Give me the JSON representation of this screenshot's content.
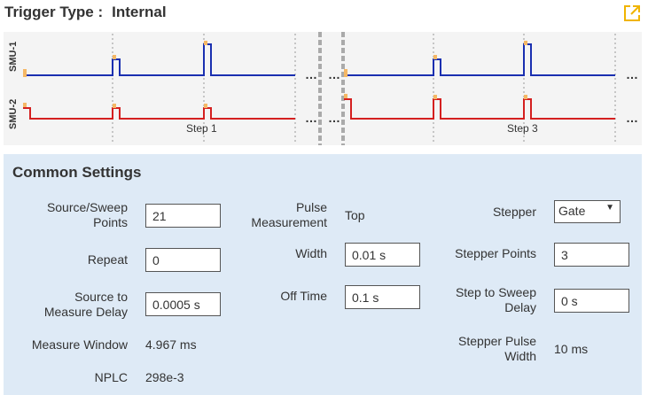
{
  "header": {
    "trigger_label": "Trigger Type :",
    "trigger_value": "Internal"
  },
  "diagram": {
    "channels": [
      "SMU-1",
      "SMU-2"
    ],
    "step_labels": [
      "Step 1",
      "Step 3"
    ],
    "ellipsis": "…",
    "colors": {
      "smu1": "#1a2fb0",
      "smu2": "#d42020",
      "marker": "#f5b765",
      "dashed": "#999999"
    }
  },
  "settings": {
    "title": "Common Settings",
    "source_sweep_points": {
      "label_line1": "Source/Sweep",
      "label_line2": "Points",
      "value": "21"
    },
    "repeat": {
      "label": "Repeat",
      "value": "0"
    },
    "source_measure_delay": {
      "label_line1": "Source to",
      "label_line2": "Measure Delay",
      "value": "0.0005 s"
    },
    "measure_window": {
      "label": "Measure Window",
      "value": "4.967 ms"
    },
    "nplc": {
      "label": "NPLC",
      "value": "298e-3"
    },
    "pulse_measurement": {
      "label_line1": "Pulse",
      "label_line2": "Measurement",
      "value": "Top"
    },
    "width": {
      "label": "Width",
      "value": "0.01 s"
    },
    "off_time": {
      "label": "Off Time",
      "value": "0.1 s"
    },
    "stepper": {
      "label": "Stepper",
      "value": "Gate"
    },
    "stepper_points": {
      "label": "Stepper Points",
      "value": "3"
    },
    "step_to_sweep_delay": {
      "label_line1": "Step to Sweep",
      "label_line2": "Delay",
      "value": "0 s"
    },
    "stepper_pulse_width": {
      "label_line1": "Stepper Pulse",
      "label_line2": "Width",
      "value": "10 ms"
    }
  },
  "icons": {
    "expand": "external-link-icon",
    "select_arrow": "chevron-down-icon"
  },
  "accent": "#f0b400"
}
